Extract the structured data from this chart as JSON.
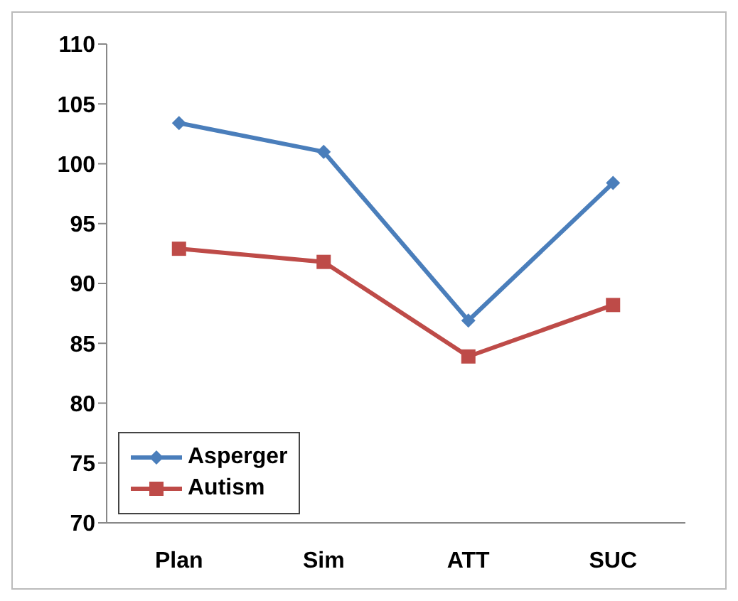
{
  "chart_data": {
    "type": "line",
    "categories": [
      "Plan",
      "Sim",
      "ATT",
      "SUC"
    ],
    "series": [
      {
        "name": "Asperger",
        "color": "#4a7ebb",
        "marker": "diamond",
        "values": [
          103.4,
          101,
          86.9,
          98.4
        ]
      },
      {
        "name": "Autism",
        "color": "#be4b48",
        "marker": "square",
        "values": [
          92.9,
          91.8,
          83.9,
          88.2
        ]
      }
    ],
    "ylim": [
      70,
      110
    ],
    "yticks": [
      70,
      75,
      80,
      85,
      90,
      95,
      100,
      105,
      110
    ],
    "grid": false,
    "legend": "bottom left",
    "line_style": "solid"
  }
}
